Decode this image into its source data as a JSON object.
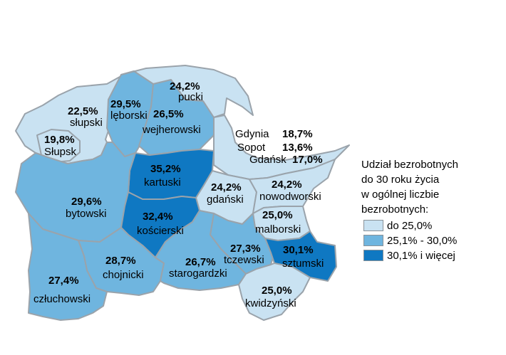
{
  "colors": {
    "low": "#c9e2f2",
    "mid": "#6fb5df",
    "high": "#0f78c2",
    "border": "#9aa3ab"
  },
  "legend": {
    "title": "Udział bezrobotnych\ndo 30 roku życia\nw ogólnej liczbie\nbezrobotnych:",
    "items": [
      {
        "label": "do 25,0%",
        "color": "#c9e2f2"
      },
      {
        "label": "25,1% - 30,0%",
        "color": "#6fb5df"
      },
      {
        "label": "30,1% i więcej",
        "color": "#0f78c2"
      }
    ]
  },
  "regions": [
    {
      "id": "pucki",
      "name": "pucki",
      "value": "24,2%"
    },
    {
      "id": "slupski",
      "name": "słupski",
      "value": "22,5%"
    },
    {
      "id": "leborski",
      "name": "lęborski",
      "value": "29,5%"
    },
    {
      "id": "wejherowski",
      "name": "wejherowski",
      "value": "26,5%"
    },
    {
      "id": "slupsk",
      "name": "Słupsk",
      "value": "19,8%"
    },
    {
      "id": "gdynia",
      "name": "Gdynia",
      "value": "18,7%"
    },
    {
      "id": "sopot",
      "name": "Sopot",
      "value": "13,6%"
    },
    {
      "id": "gdansk",
      "name": "Gdańsk",
      "value": "17,0%"
    },
    {
      "id": "kartuski",
      "name": "kartuski",
      "value": "35,2%"
    },
    {
      "id": "gdanski",
      "name": "gdański",
      "value": "24,2%"
    },
    {
      "id": "nowodworski",
      "name": "nowodworski",
      "value": "24,2%"
    },
    {
      "id": "bytowski",
      "name": "bytowski",
      "value": "29,6%"
    },
    {
      "id": "koscierski",
      "name": "kościerski",
      "value": "32,4%"
    },
    {
      "id": "malborski",
      "name": "malborski",
      "value": "25,0%"
    },
    {
      "id": "tczewski",
      "name": "tczewski",
      "value": "27,3%"
    },
    {
      "id": "sztumski",
      "name": "sztumski",
      "value": "30,1%"
    },
    {
      "id": "chojnicki",
      "name": "chojnicki",
      "value": "28,7%"
    },
    {
      "id": "starogardzki",
      "name": "starogardzki",
      "value": "26,7%"
    },
    {
      "id": "czluchowski",
      "name": "człuchowski",
      "value": "27,4%"
    },
    {
      "id": "kwidzynski",
      "name": "kwidzyński",
      "value": "25,0%"
    }
  ]
}
